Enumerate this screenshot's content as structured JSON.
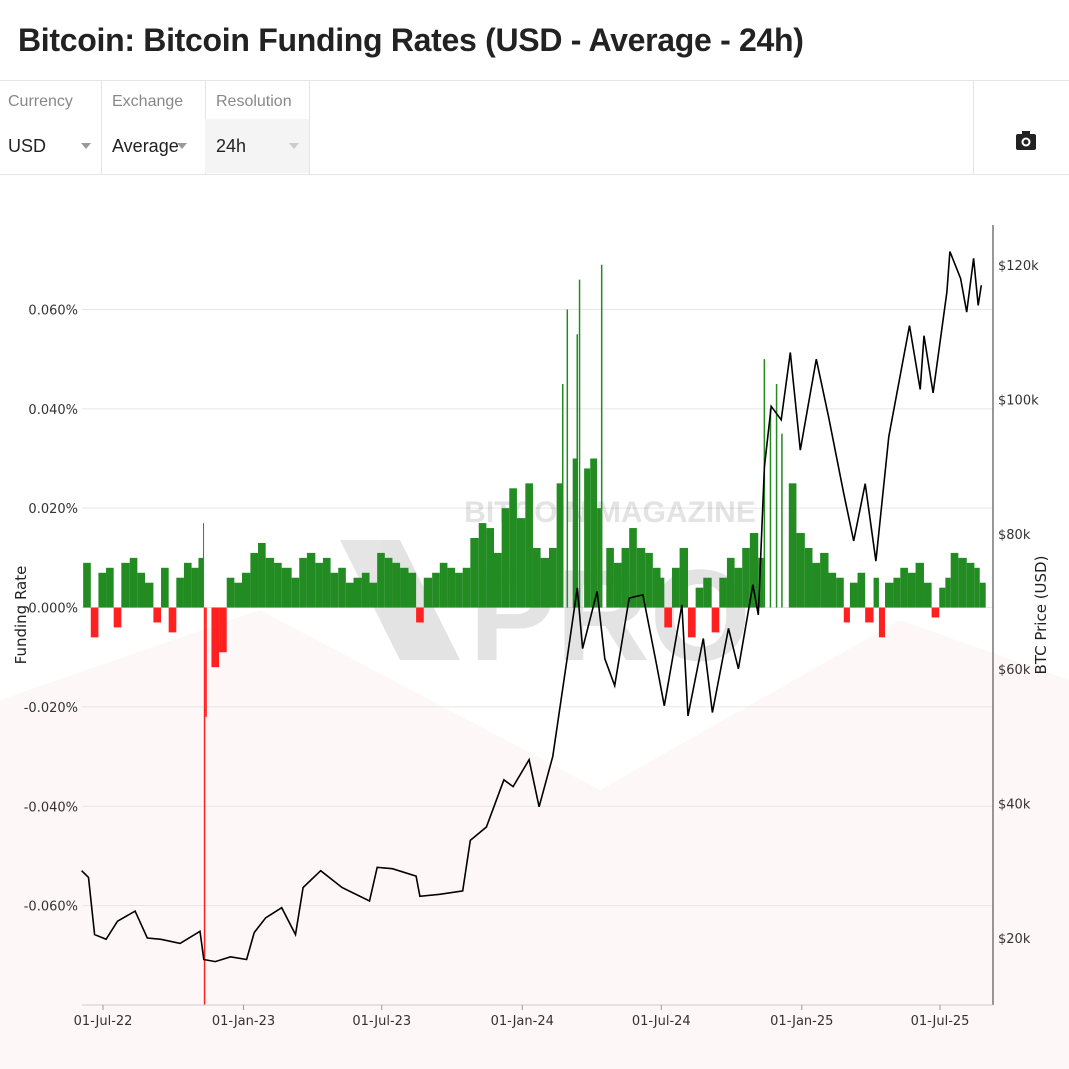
{
  "title": "Bitcoin: Bitcoin Funding Rates (USD - Average - 24h)",
  "controls": [
    {
      "label": "Currency",
      "value": "USD"
    },
    {
      "label": "Exchange",
      "value": "Average"
    },
    {
      "label": "Resolution",
      "value": "24h"
    }
  ],
  "camera_icon": "camera-icon",
  "watermark": "BITCOIN MAGAZINE PRO",
  "colors": {
    "positive": "#228B22",
    "negative": "#ff2020",
    "price": "#000000",
    "grid": "#e6e6e6"
  },
  "chart_data": {
    "type": "bar+line",
    "ylabel": "Funding Rate",
    "y2label": "BTC Price (USD)",
    "ylim": [
      -0.08,
      0.077
    ],
    "y2lim": [
      10000,
      128000
    ],
    "yticks": [
      "0.060%",
      "0.040%",
      "0.020%",
      "0.000%",
      "-0.020%",
      "-0.040%",
      "-0.060%"
    ],
    "ytick_values": [
      0.06,
      0.04,
      0.02,
      0,
      -0.02,
      -0.04,
      -0.06
    ],
    "y2ticks": [
      "$120k",
      "$100k",
      "$80k",
      "$60k",
      "$40k",
      "$20k"
    ],
    "y2tick_values": [
      120000,
      100000,
      80000,
      60000,
      40000,
      20000
    ],
    "xticks": [
      "01-Jul-22",
      "01-Jan-23",
      "01-Jul-23",
      "01-Jan-24",
      "01-Jul-24",
      "01-Jan-25",
      "01-Jul-25"
    ],
    "xtick_dates": [
      "2022-07-01",
      "2023-01-01",
      "2023-07-01",
      "2024-01-01",
      "2024-07-01",
      "2025-01-01",
      "2025-07-01"
    ],
    "xlim": [
      "2022-06-03",
      "2025-08-25"
    ],
    "series": [
      {
        "name": "BTC Price",
        "type": "line",
        "points": [
          [
            "2022-06-03",
            30000
          ],
          [
            "2022-06-12",
            29000
          ],
          [
            "2022-06-20",
            20500
          ],
          [
            "2022-07-05",
            19800
          ],
          [
            "2022-07-20",
            22500
          ],
          [
            "2022-08-12",
            24000
          ],
          [
            "2022-08-28",
            20000
          ],
          [
            "2022-09-15",
            19800
          ],
          [
            "2022-10-10",
            19200
          ],
          [
            "2022-11-05",
            21000
          ],
          [
            "2022-11-10",
            16800
          ],
          [
            "2022-11-25",
            16500
          ],
          [
            "2022-12-15",
            17200
          ],
          [
            "2023-01-05",
            16800
          ],
          [
            "2023-01-15",
            20800
          ],
          [
            "2023-01-30",
            23000
          ],
          [
            "2023-02-20",
            24500
          ],
          [
            "2023-03-10",
            20500
          ],
          [
            "2023-03-20",
            27500
          ],
          [
            "2023-04-12",
            30000
          ],
          [
            "2023-05-10",
            27500
          ],
          [
            "2023-06-15",
            25500
          ],
          [
            "2023-06-25",
            30500
          ],
          [
            "2023-07-15",
            30300
          ],
          [
            "2023-08-15",
            29200
          ],
          [
            "2023-08-20",
            26200
          ],
          [
            "2023-09-15",
            26500
          ],
          [
            "2023-10-15",
            27000
          ],
          [
            "2023-10-25",
            34500
          ],
          [
            "2023-11-15",
            36500
          ],
          [
            "2023-12-08",
            43500
          ],
          [
            "2023-12-20",
            42500
          ],
          [
            "2024-01-10",
            46500
          ],
          [
            "2024-01-23",
            39500
          ],
          [
            "2024-02-10",
            47000
          ],
          [
            "2024-02-28",
            61000
          ],
          [
            "2024-03-13",
            72000
          ],
          [
            "2024-03-20",
            63000
          ],
          [
            "2024-04-08",
            71500
          ],
          [
            "2024-04-18",
            61500
          ],
          [
            "2024-05-01",
            57500
          ],
          [
            "2024-05-20",
            70500
          ],
          [
            "2024-06-07",
            71000
          ],
          [
            "2024-06-25",
            60500
          ],
          [
            "2024-07-05",
            54500
          ],
          [
            "2024-07-28",
            69500
          ],
          [
            "2024-08-05",
            53000
          ],
          [
            "2024-08-25",
            64500
          ],
          [
            "2024-09-06",
            53500
          ],
          [
            "2024-09-27",
            66000
          ],
          [
            "2024-10-10",
            60000
          ],
          [
            "2024-10-29",
            72500
          ],
          [
            "2024-11-05",
            68000
          ],
          [
            "2024-11-13",
            90000
          ],
          [
            "2024-11-22",
            99000
          ],
          [
            "2024-12-05",
            97000
          ],
          [
            "2024-12-17",
            107000
          ],
          [
            "2024-12-30",
            92500
          ],
          [
            "2025-01-20",
            106000
          ],
          [
            "2025-02-05",
            97500
          ],
          [
            "2025-02-25",
            86000
          ],
          [
            "2025-03-10",
            79000
          ],
          [
            "2025-03-25",
            87500
          ],
          [
            "2025-04-08",
            76000
          ],
          [
            "2025-04-25",
            94500
          ],
          [
            "2025-05-22",
            111000
          ],
          [
            "2025-06-05",
            101500
          ],
          [
            "2025-06-10",
            109500
          ],
          [
            "2025-06-22",
            101000
          ],
          [
            "2025-07-10",
            116000
          ],
          [
            "2025-07-14",
            122000
          ],
          [
            "2025-07-28",
            118000
          ],
          [
            "2025-08-05",
            113000
          ],
          [
            "2025-08-14",
            121000
          ],
          [
            "2025-08-20",
            114000
          ],
          [
            "2025-08-24",
            117000
          ]
        ]
      },
      {
        "name": "Funding Rate",
        "type": "bar",
        "points": [
          [
            "2022-06-05",
            0.009
          ],
          [
            "2022-06-15",
            -0.006
          ],
          [
            "2022-06-25",
            0.007
          ],
          [
            "2022-07-05",
            0.008
          ],
          [
            "2022-07-15",
            -0.004
          ],
          [
            "2022-07-25",
            0.009
          ],
          [
            "2022-08-05",
            0.01
          ],
          [
            "2022-08-15",
            0.007
          ],
          [
            "2022-08-25",
            0.005
          ],
          [
            "2022-09-05",
            -0.003
          ],
          [
            "2022-09-15",
            0.008
          ],
          [
            "2022-09-25",
            -0.005
          ],
          [
            "2022-10-05",
            0.006
          ],
          [
            "2022-10-15",
            0.009
          ],
          [
            "2022-10-25",
            0.008
          ],
          [
            "2022-11-03",
            0.01
          ],
          [
            "2022-11-09",
            0.017
          ],
          [
            "2022-11-10",
            -0.08
          ],
          [
            "2022-11-12",
            -0.022
          ],
          [
            "2022-11-20",
            -0.012
          ],
          [
            "2022-11-30",
            -0.009
          ],
          [
            "2022-12-10",
            0.006
          ],
          [
            "2022-12-20",
            0.005
          ],
          [
            "2022-12-30",
            0.007
          ],
          [
            "2023-01-10",
            0.011
          ],
          [
            "2023-01-20",
            0.013
          ],
          [
            "2023-01-30",
            0.01
          ],
          [
            "2023-02-10",
            0.009
          ],
          [
            "2023-02-20",
            0.008
          ],
          [
            "2023-03-05",
            0.006
          ],
          [
            "2023-03-15",
            0.01
          ],
          [
            "2023-03-25",
            0.011
          ],
          [
            "2023-04-05",
            0.009
          ],
          [
            "2023-04-15",
            0.01
          ],
          [
            "2023-04-25",
            0.007
          ],
          [
            "2023-05-05",
            0.008
          ],
          [
            "2023-05-15",
            0.005
          ],
          [
            "2023-05-25",
            0.006
          ],
          [
            "2023-06-05",
            0.007
          ],
          [
            "2023-06-15",
            0.005
          ],
          [
            "2023-06-25",
            0.011
          ],
          [
            "2023-07-05",
            0.01
          ],
          [
            "2023-07-15",
            0.009
          ],
          [
            "2023-07-25",
            0.008
          ],
          [
            "2023-08-05",
            0.007
          ],
          [
            "2023-08-15",
            -0.003
          ],
          [
            "2023-08-25",
            0.006
          ],
          [
            "2023-09-05",
            0.007
          ],
          [
            "2023-09-15",
            0.009
          ],
          [
            "2023-09-25",
            0.008
          ],
          [
            "2023-10-05",
            0.007
          ],
          [
            "2023-10-15",
            0.008
          ],
          [
            "2023-10-25",
            0.014
          ],
          [
            "2023-11-05",
            0.017
          ],
          [
            "2023-11-15",
            0.016
          ],
          [
            "2023-11-25",
            0.011
          ],
          [
            "2023-12-05",
            0.02
          ],
          [
            "2023-12-15",
            0.024
          ],
          [
            "2023-12-25",
            0.018
          ],
          [
            "2024-01-05",
            0.025
          ],
          [
            "2024-01-15",
            0.012
          ],
          [
            "2024-01-25",
            0.01
          ],
          [
            "2024-02-05",
            0.012
          ],
          [
            "2024-02-15",
            0.025
          ],
          [
            "2024-02-22",
            0.045
          ],
          [
            "2024-02-28",
            0.06
          ],
          [
            "2024-03-07",
            0.03
          ],
          [
            "2024-03-12",
            0.055
          ],
          [
            "2024-03-15",
            0.066
          ],
          [
            "2024-03-22",
            0.028
          ],
          [
            "2024-03-30",
            0.03
          ],
          [
            "2024-04-08",
            0.02
          ],
          [
            "2024-04-13",
            0.069
          ],
          [
            "2024-04-20",
            0.012
          ],
          [
            "2024-04-30",
            0.009
          ],
          [
            "2024-05-10",
            0.012
          ],
          [
            "2024-05-20",
            0.016
          ],
          [
            "2024-05-30",
            0.012
          ],
          [
            "2024-06-10",
            0.011
          ],
          [
            "2024-06-20",
            0.008
          ],
          [
            "2024-06-30",
            0.006
          ],
          [
            "2024-07-05",
            -0.004
          ],
          [
            "2024-07-15",
            0.008
          ],
          [
            "2024-07-25",
            0.012
          ],
          [
            "2024-08-05",
            -0.006
          ],
          [
            "2024-08-15",
            0.004
          ],
          [
            "2024-08-25",
            0.006
          ],
          [
            "2024-09-05",
            -0.005
          ],
          [
            "2024-09-15",
            0.006
          ],
          [
            "2024-09-25",
            0.01
          ],
          [
            "2024-10-05",
            0.008
          ],
          [
            "2024-10-15",
            0.012
          ],
          [
            "2024-10-25",
            0.015
          ],
          [
            "2024-11-05",
            0.01
          ],
          [
            "2024-11-12",
            0.05
          ],
          [
            "2024-11-20",
            0.04
          ],
          [
            "2024-11-28",
            0.045
          ],
          [
            "2024-12-05",
            0.035
          ],
          [
            "2024-12-15",
            0.025
          ],
          [
            "2024-12-25",
            0.015
          ],
          [
            "2025-01-05",
            0.012
          ],
          [
            "2025-01-15",
            0.009
          ],
          [
            "2025-01-25",
            0.011
          ],
          [
            "2025-02-05",
            0.007
          ],
          [
            "2025-02-15",
            0.006
          ],
          [
            "2025-02-25",
            -0.003
          ],
          [
            "2025-03-05",
            0.005
          ],
          [
            "2025-03-15",
            0.007
          ],
          [
            "2025-03-25",
            -0.003
          ],
          [
            "2025-04-05",
            0.006
          ],
          [
            "2025-04-12",
            -0.006
          ],
          [
            "2025-04-20",
            0.005
          ],
          [
            "2025-05-01",
            0.006
          ],
          [
            "2025-05-10",
            0.008
          ],
          [
            "2025-05-20",
            0.007
          ],
          [
            "2025-05-30",
            0.009
          ],
          [
            "2025-06-10",
            0.005
          ],
          [
            "2025-06-20",
            -0.002
          ],
          [
            "2025-06-30",
            0.004
          ],
          [
            "2025-07-08",
            0.006
          ],
          [
            "2025-07-15",
            0.011
          ],
          [
            "2025-07-25",
            0.01
          ],
          [
            "2025-08-05",
            0.009
          ],
          [
            "2025-08-15",
            0.008
          ],
          [
            "2025-08-22",
            0.005
          ]
        ]
      }
    ]
  }
}
